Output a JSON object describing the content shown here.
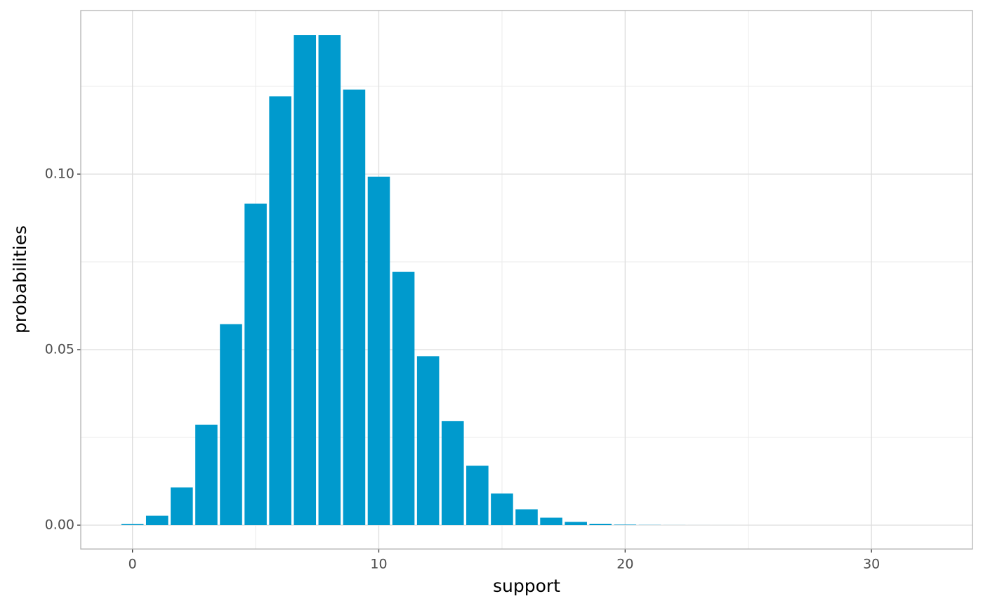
{
  "chart_data": {
    "type": "bar",
    "x_label": "support",
    "y_label": "probabilities",
    "x": [
      0,
      1,
      2,
      3,
      4,
      5,
      6,
      7,
      8,
      9,
      10,
      11,
      12,
      13,
      14,
      15,
      16,
      17,
      18,
      19,
      20,
      21,
      22,
      23,
      24,
      25,
      26,
      27,
      28,
      29,
      30,
      31,
      32
    ],
    "values": [
      0.000335,
      0.00268,
      0.01073,
      0.02863,
      0.05725,
      0.0916,
      0.12214,
      0.13959,
      0.13959,
      0.12408,
      0.09926,
      0.07219,
      0.04813,
      0.02962,
      0.01692,
      0.00903,
      0.00451,
      0.00212,
      0.00094,
      0.0004,
      0.00016,
      6e-05,
      2e-05,
      8e-06,
      3e-06,
      1e-06,
      0,
      0,
      0,
      0,
      0,
      0,
      0
    ],
    "bar_width": 0.9,
    "color": "#009acd",
    "xlim": [
      -2.1,
      34.1
    ],
    "xticks": [
      0,
      10,
      20,
      30
    ],
    "x_minor_ticks": [
      5,
      15,
      25
    ],
    "ylim": [
      -0.0068,
      0.1466
    ],
    "yticks": [
      {
        "value": 0,
        "label": "0.00"
      },
      {
        "value": 0.05,
        "label": "0.05"
      },
      {
        "value": 0.1,
        "label": "0.10"
      }
    ],
    "y_minor_ticks": [
      0.025,
      0.075,
      0.125
    ],
    "grid": true
  }
}
